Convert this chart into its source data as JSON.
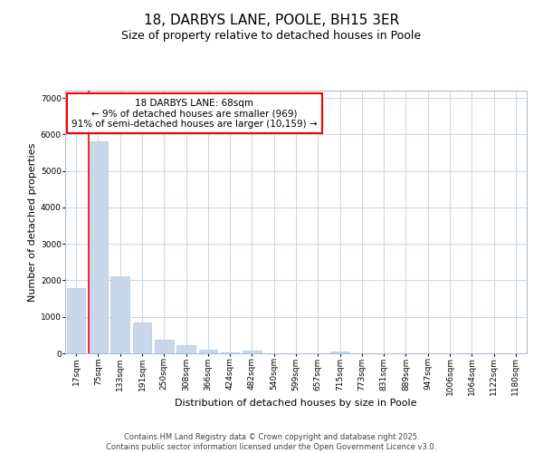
{
  "title": "18, DARBYS LANE, POOLE, BH15 3ER",
  "subtitle": "Size of property relative to detached houses in Poole",
  "xlabel": "Distribution of detached houses by size in Poole",
  "ylabel": "Number of detached properties",
  "categories": [
    "17sqm",
    "75sqm",
    "133sqm",
    "191sqm",
    "250sqm",
    "308sqm",
    "366sqm",
    "424sqm",
    "482sqm",
    "540sqm",
    "599sqm",
    "657sqm",
    "715sqm",
    "773sqm",
    "831sqm",
    "889sqm",
    "947sqm",
    "1006sqm",
    "1064sqm",
    "1122sqm",
    "1180sqm"
  ],
  "values": [
    1800,
    5800,
    2100,
    840,
    370,
    230,
    110,
    30,
    80,
    10,
    5,
    3,
    50,
    0,
    0,
    0,
    0,
    0,
    0,
    0,
    0
  ],
  "bar_color": "#c8d8ea",
  "bar_edge_color": "#b0c8e0",
  "red_line_x": 1,
  "annotation_box_text": "18 DARBYS LANE: 68sqm\n← 9% of detached houses are smaller (969)\n91% of semi-detached houses are larger (10,159) →",
  "ylim": [
    0,
    7200
  ],
  "yticks": [
    0,
    1000,
    2000,
    3000,
    4000,
    5000,
    6000,
    7000
  ],
  "grid_color": "#c8d4e8",
  "background_color": "#ffffff",
  "axes_background_color": "#ffffff",
  "footer_line1": "Contains HM Land Registry data © Crown copyright and database right 2025.",
  "footer_line2": "Contains public sector information licensed under the Open Government Licence v3.0.",
  "title_fontsize": 11,
  "subtitle_fontsize": 9,
  "annotation_fontsize": 7.5,
  "tick_fontsize": 6.5,
  "label_fontsize": 8,
  "footer_fontsize": 6
}
